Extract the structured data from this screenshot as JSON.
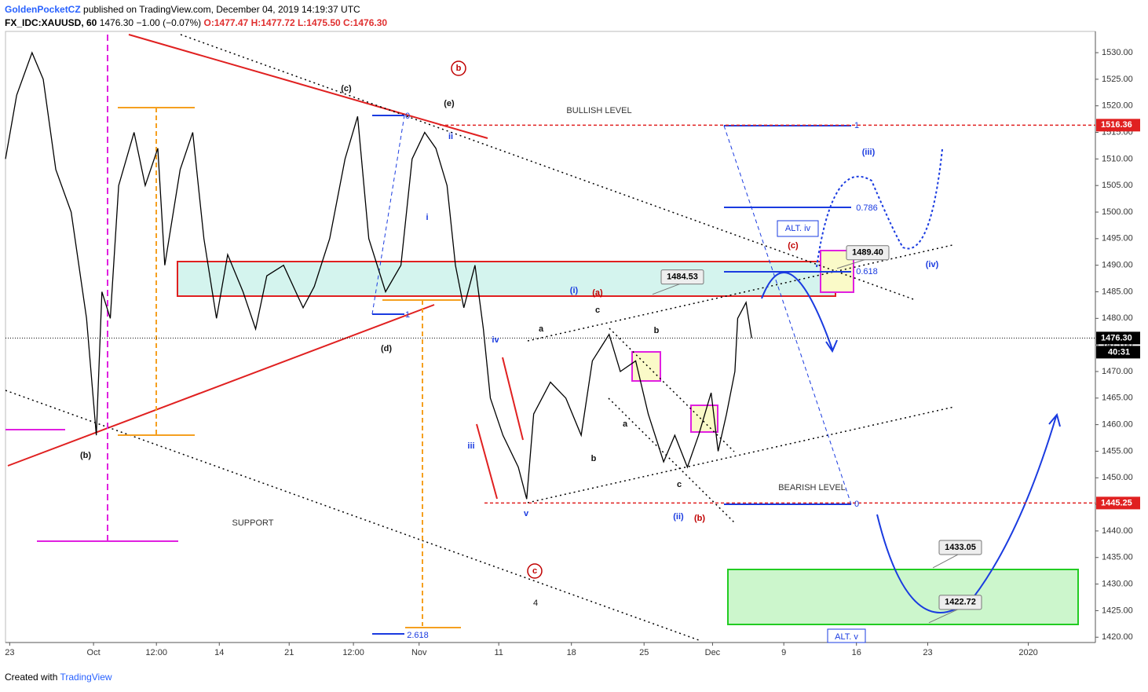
{
  "header": {
    "publisher": "GoldenPocketCZ",
    "published": "published on TradingView.com, December 04, 2019 14:19:37 UTC",
    "symbol": "FX_IDC:XAUUSD, 60",
    "last": "1476.30",
    "change": "−1.00 (−0.07%)",
    "open": "O:1477.47",
    "high": "H:1477.72",
    "low": "L:1475.50",
    "close": "C:1476.30"
  },
  "footer": {
    "created": "Created with",
    "brand": "TradingView"
  },
  "chart_data": {
    "type": "line",
    "color": "#000000",
    "x": [
      -0.3,
      0.5,
      1.6,
      2.4,
      3.3,
      4.4,
      5.5,
      6.2,
      6.6,
      7.2,
      7.8,
      8.9,
      9.7,
      10.6,
      11.1,
      12.2,
      13.1,
      13.9,
      14.8,
      15.6,
      16.7,
      17.6,
      18.4,
      19.6,
      21,
      21.8,
      22.9,
      24,
      24.9,
      25.7,
      26.9,
      28,
      28.8,
      29.7,
      30.5,
      31.3,
      31.9,
      32.5,
      33.3,
      33.9,
      34.4,
      35.3,
      36.4,
      37,
      37.5,
      38.7,
      39.8,
      40.9,
      41.7,
      42.9,
      43.7,
      44.8,
      45.7,
      46.8,
      47.6,
      48.5,
      49.3,
      50.2,
      50.7,
      51.3,
      51.9,
      52.1,
      52.7,
      53.1
    ],
    "values": [
      1510,
      1522,
      1530,
      1525,
      1508,
      1500,
      1480,
      1458,
      1485,
      1480,
      1505,
      1515,
      1505,
      1512,
      1490,
      1508,
      1515,
      1495,
      1480,
      1492,
      1485,
      1478,
      1488,
      1490,
      1482,
      1486,
      1495,
      1510,
      1518,
      1495,
      1485,
      1490,
      1510,
      1515,
      1512,
      1505,
      1490,
      1482,
      1490,
      1478,
      1465,
      1458,
      1452,
      1446,
      1462,
      1468,
      1465,
      1458,
      1472,
      1477,
      1470,
      1472,
      1462,
      1453,
      1458,
      1452,
      1458,
      1466,
      1455,
      1462,
      1470,
      1480,
      1483,
      1476.3
    ],
    "xlim": [
      -0.3,
      77.7
    ],
    "ylim": [
      1419,
      1534
    ],
    "xticks": [
      {
        "value": 0,
        "label": "23"
      },
      {
        "value": 6,
        "label": "Oct"
      },
      {
        "value": 10.5,
        "label": "12:00"
      },
      {
        "value": 15,
        "label": "14"
      },
      {
        "value": 20,
        "label": "21"
      },
      {
        "value": 24.6,
        "label": "12:00"
      },
      {
        "value": 29.3,
        "label": "Nov"
      },
      {
        "value": 35,
        "label": "11"
      },
      {
        "value": 40.2,
        "label": "18"
      },
      {
        "value": 45.4,
        "label": "25"
      },
      {
        "value": 50.3,
        "label": "Dec"
      },
      {
        "value": 55.4,
        "label": "9"
      },
      {
        "value": 60.6,
        "label": "16"
      },
      {
        "value": 65.7,
        "label": "23"
      },
      {
        "value": 72.9,
        "label": "2020"
      }
    ],
    "yticks": [
      {
        "value": 1420,
        "label": "1420.00"
      },
      {
        "value": 1425,
        "label": "1425.00"
      },
      {
        "value": 1430,
        "label": "1430.00"
      },
      {
        "value": 1435,
        "label": "1435.00"
      },
      {
        "value": 1440,
        "label": "1440.00"
      },
      {
        "value": 1445,
        "label": "1445.00"
      },
      {
        "value": 1450,
        "label": "1450.00"
      },
      {
        "value": 1455,
        "label": "1455.00"
      },
      {
        "value": 1460,
        "label": "1460.00"
      },
      {
        "value": 1465,
        "label": "1465.00"
      },
      {
        "value": 1470,
        "label": "1470.00"
      },
      {
        "value": 1475,
        "label": "1475.00"
      },
      {
        "value": 1480,
        "label": "1480.00"
      },
      {
        "value": 1485,
        "label": "1485.00"
      },
      {
        "value": 1490,
        "label": "1490.00"
      },
      {
        "value": 1495,
        "label": "1495.00"
      },
      {
        "value": 1500,
        "label": "1500.00"
      },
      {
        "value": 1505,
        "label": "1505.00"
      },
      {
        "value": 1510,
        "label": "1510.00"
      },
      {
        "value": 1515,
        "label": "1515.00"
      },
      {
        "value": 1520,
        "label": "1520.00"
      },
      {
        "value": 1525,
        "label": "1525.00"
      },
      {
        "value": 1530,
        "label": "1530.00"
      }
    ],
    "levels": [
      {
        "value": 1516.36,
        "label": "1516.36"
      },
      {
        "value": 1445.25,
        "label": "1445.25"
      },
      {
        "value": 1476.3,
        "label": "1476.30"
      }
    ],
    "countdown": "40:31",
    "callouts": [
      {
        "value": 1484.53,
        "label": "1484.53"
      },
      {
        "value": 1489.4,
        "label": "1489.40"
      },
      {
        "value": 1433.05,
        "label": "1433.05"
      },
      {
        "value": 1422.72,
        "label": "1422.72"
      }
    ],
    "annotations": [
      "BULLISH LEVEL",
      "BEARISH LEVEL",
      "SUPPORT",
      "(c)",
      "(e)",
      "b",
      "(b)",
      "(d)",
      "ii",
      "i",
      "iv",
      "iii",
      "v",
      "(i)",
      "(a)",
      "a",
      "c",
      "b",
      "a",
      "b",
      "c",
      "(ii)",
      "(b)",
      "(c)",
      "(iii)",
      "(iv)",
      "ALT. iv",
      "ALT. v",
      "c",
      "4",
      "1",
      "0.786",
      "0.618",
      "0",
      "2.618",
      "0",
      "1"
    ]
  }
}
